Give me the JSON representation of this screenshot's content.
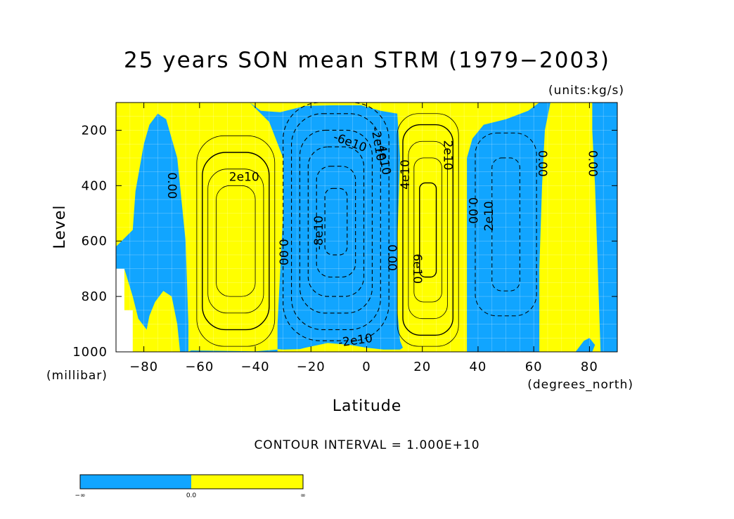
{
  "chart_data": {
    "type": "heatmap",
    "title": "25 years SON mean STRM (1979−2003)",
    "units_label": "(units:kg/s)",
    "xlabel": "Latitude",
    "ylabel": "Level",
    "x_unit_label": "(degrees_north)",
    "y_unit_label": "(millibar)",
    "xlim": [
      -90,
      90
    ],
    "ylim": [
      1000,
      100
    ],
    "x_ticks": [
      -80,
      -60,
      -40,
      -20,
      0,
      20,
      40,
      60,
      80
    ],
    "x_tick_labels": [
      "−80",
      "−60",
      "−40",
      "−20",
      "0",
      "20",
      "40",
      "60",
      "80"
    ],
    "y_ticks": [
      200,
      400,
      600,
      800,
      1000
    ],
    "y_tick_labels": [
      "200",
      "400",
      "600",
      "800",
      "1000"
    ],
    "contour_interval_text": "CONTOUR INTERVAL = 1.000E+10",
    "contour_interval": 10000000000.0,
    "grid": true,
    "colors": {
      "negative": "#11a5ff",
      "positive": "#ffff00",
      "missing": "#ffffff"
    },
    "cells": [
      {
        "name": "cell-sh-polar-negative",
        "sign": "negative",
        "center_lat": -77,
        "center_level": 500,
        "extrema": -10000000000.0
      },
      {
        "name": "cell-sh-ferrel-positive",
        "sign": "positive",
        "center_lat": -47,
        "center_level": 600,
        "extrema": 30000000000.0
      },
      {
        "name": "cell-hadley-negative",
        "sign": "negative",
        "center_lat": -12,
        "center_level": 450,
        "extrema": -90000000000.0
      },
      {
        "name": "cell-hadley-positive",
        "sign": "positive",
        "center_lat": 20,
        "center_level": 480,
        "extrema": 70000000000.0
      },
      {
        "name": "cell-nh-ferrel-negative",
        "sign": "negative",
        "center_lat": 50,
        "center_level": 500,
        "extrema": -30000000000.0
      },
      {
        "name": "cell-nh-polar-positive",
        "sign": "positive",
        "center_lat": 72,
        "center_level": 500,
        "extrema": 10000000000.0
      }
    ],
    "contour_labels": [
      {
        "text": "0.00",
        "lat": -70,
        "level": 400,
        "rotate": 90
      },
      {
        "text": "2e10",
        "lat": -44,
        "level": 370,
        "rotate": 0
      },
      {
        "text": "0.00",
        "lat": -30,
        "level": 640,
        "rotate": 90
      },
      {
        "text": "-8e10",
        "lat": -17,
        "level": 570,
        "rotate": -90
      },
      {
        "text": "-6e10",
        "lat": -6,
        "level": 245,
        "rotate": 20
      },
      {
        "text": "-2e10",
        "lat": 4,
        "level": 250,
        "rotate": 80
      },
      {
        "text": "-4e10",
        "lat": 6,
        "level": 300,
        "rotate": 80
      },
      {
        "text": "-2e10",
        "lat": -4,
        "level": 960,
        "rotate": -8
      },
      {
        "text": "0.00",
        "lat": 9,
        "level": 660,
        "rotate": 90
      },
      {
        "text": "4e10",
        "lat": 14,
        "level": 360,
        "rotate": -90
      },
      {
        "text": "6e10",
        "lat": 18,
        "level": 700,
        "rotate": 90
      },
      {
        "text": "2e10",
        "lat": 29,
        "level": 290,
        "rotate": 90
      },
      {
        "text": "0.00",
        "lat": 38,
        "level": 490,
        "rotate": 90
      },
      {
        "text": "2e10",
        "lat": 44,
        "level": 510,
        "rotate": -90
      },
      {
        "text": "0.00",
        "lat": 63,
        "level": 320,
        "rotate": 90
      },
      {
        "text": "0.00",
        "lat": 81,
        "level": 320,
        "rotate": 90
      }
    ],
    "colorbar": {
      "labels": [
        "−∞",
        "0.0",
        "∞"
      ],
      "values": [
        -1,
        0,
        1
      ]
    }
  }
}
